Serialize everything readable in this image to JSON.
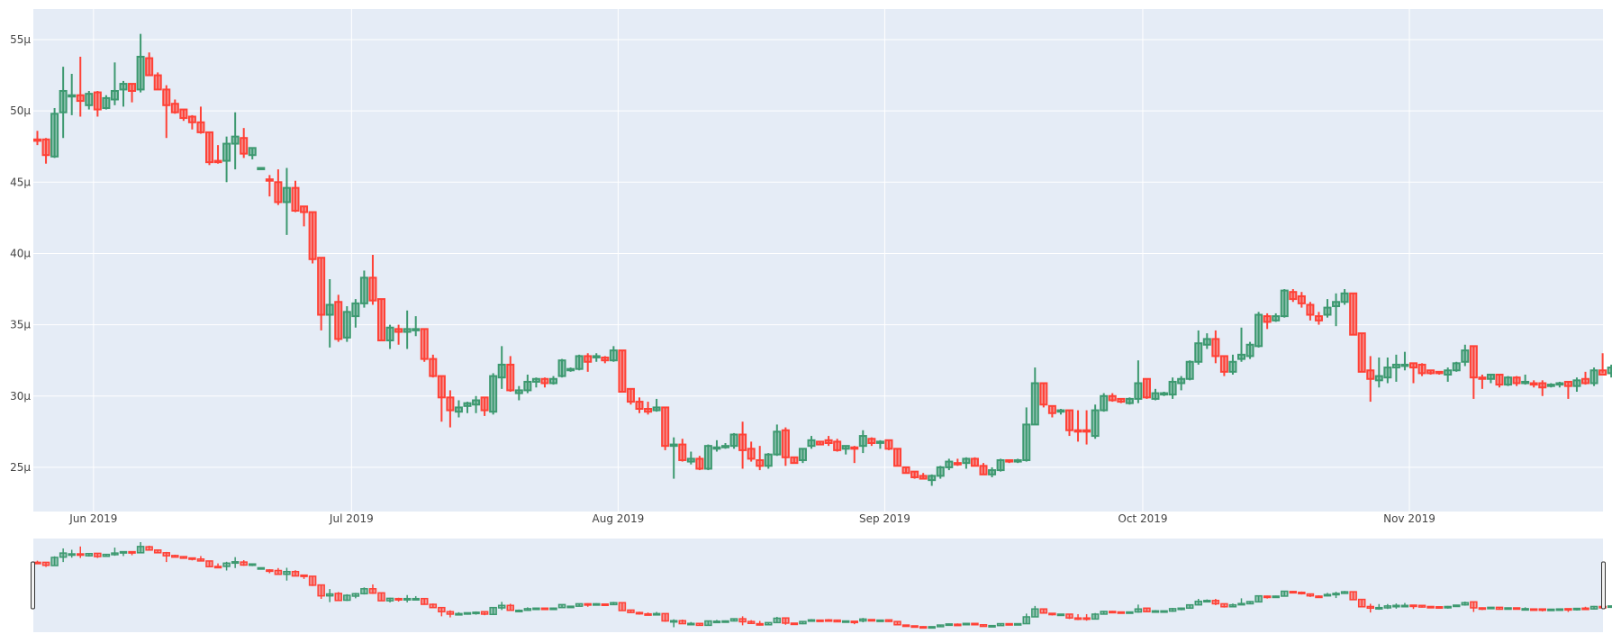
{
  "chart_data": {
    "type": "candlestick",
    "title": "",
    "xlabel": "",
    "ylabel": "",
    "x_start": "2019-05-25",
    "x_interval": "1 day",
    "ylim": [
      22.0,
      57.3
    ],
    "y_ticks": [
      {
        "value": 25,
        "label": "25µ"
      },
      {
        "value": 30,
        "label": "30µ"
      },
      {
        "value": 35,
        "label": "35µ"
      },
      {
        "value": 40,
        "label": "40µ"
      },
      {
        "value": 45,
        "label": "45µ"
      },
      {
        "value": 50,
        "label": "50µ"
      },
      {
        "value": 55,
        "label": "55µ"
      }
    ],
    "x_ticks": [
      {
        "date": "2019-06-01",
        "label": "Jun 2019"
      },
      {
        "date": "2019-07-01",
        "label": "Jul 2019"
      },
      {
        "date": "2019-08-01",
        "label": "Aug 2019"
      },
      {
        "date": "2019-09-01",
        "label": "Sep 2019"
      },
      {
        "date": "2019-10-01",
        "label": "Oct 2019"
      },
      {
        "date": "2019-11-01",
        "label": "Nov 2019"
      }
    ],
    "grid": true,
    "legend": false,
    "rangeslider": true,
    "colors": {
      "increasing": "#3D9970",
      "decreasing": "#FF4136",
      "plot_bg": "#E5ECF6",
      "grid": "#FFFFFF",
      "tick_text": "#444444"
    },
    "ohlc": [
      [
        48.0,
        48.6,
        47.6,
        47.9
      ],
      [
        48.0,
        48.1,
        46.3,
        46.9
      ],
      [
        46.8,
        50.2,
        46.7,
        49.8
      ],
      [
        49.9,
        53.1,
        48.1,
        51.4
      ],
      [
        51.1,
        52.6,
        49.7,
        51.1
      ],
      [
        51.1,
        53.8,
        49.6,
        50.7
      ],
      [
        50.4,
        51.4,
        50.1,
        51.2
      ],
      [
        51.3,
        51.4,
        49.6,
        50.1
      ],
      [
        50.2,
        51.1,
        50.1,
        50.9
      ],
      [
        50.8,
        53.4,
        50.4,
        51.4
      ],
      [
        51.5,
        52.1,
        50.3,
        51.9
      ],
      [
        51.9,
        51.9,
        50.6,
        51.4
      ],
      [
        51.5,
        55.4,
        51.3,
        53.8
      ],
      [
        53.7,
        54.1,
        52.5,
        52.5
      ],
      [
        52.5,
        52.7,
        51.5,
        51.5
      ],
      [
        51.5,
        51.8,
        48.1,
        50.4
      ],
      [
        50.5,
        50.8,
        49.8,
        49.9
      ],
      [
        50.1,
        50.1,
        49.3,
        49.5
      ],
      [
        49.6,
        49.7,
        48.7,
        49.2
      ],
      [
        49.2,
        50.3,
        48.4,
        48.5
      ],
      [
        48.5,
        48.5,
        46.2,
        46.4
      ],
      [
        46.5,
        47.6,
        46.3,
        46.4
      ],
      [
        46.5,
        48.2,
        45.0,
        47.7
      ],
      [
        47.7,
        49.9,
        45.9,
        48.2
      ],
      [
        48.1,
        48.8,
        46.7,
        47.0
      ],
      [
        46.9,
        47.4,
        46.6,
        47.4
      ],
      [
        46.0,
        46.0,
        46.0,
        46.0
      ],
      [
        45.2,
        45.5,
        44.0,
        45.1
      ],
      [
        45.0,
        45.9,
        43.4,
        43.6
      ],
      [
        43.6,
        46.0,
        41.3,
        44.6
      ],
      [
        44.6,
        45.1,
        42.9,
        43.0
      ],
      [
        43.3,
        43.3,
        41.9,
        42.9
      ],
      [
        42.9,
        42.9,
        39.3,
        39.6
      ],
      [
        39.7,
        39.7,
        34.6,
        35.7
      ],
      [
        35.7,
        38.2,
        33.4,
        36.4
      ],
      [
        36.6,
        37.1,
        33.8,
        34.0
      ],
      [
        34.1,
        36.3,
        33.8,
        35.9
      ],
      [
        35.6,
        36.8,
        34.8,
        36.5
      ],
      [
        36.5,
        38.8,
        36.2,
        38.3
      ],
      [
        38.3,
        39.9,
        36.4,
        36.7
      ],
      [
        36.8,
        36.8,
        33.9,
        33.9
      ],
      [
        33.9,
        35.0,
        33.3,
        34.8
      ],
      [
        34.7,
        35.0,
        33.6,
        34.5
      ],
      [
        34.5,
        36.0,
        33.3,
        34.7
      ],
      [
        34.7,
        35.6,
        34.2,
        34.7
      ],
      [
        34.7,
        34.7,
        32.4,
        32.6
      ],
      [
        32.6,
        32.9,
        31.3,
        31.4
      ],
      [
        31.4,
        31.4,
        28.2,
        29.9
      ],
      [
        29.9,
        30.4,
        27.8,
        29.0
      ],
      [
        28.9,
        29.7,
        28.5,
        29.2
      ],
      [
        29.3,
        29.6,
        28.8,
        29.5
      ],
      [
        29.4,
        30.0,
        28.8,
        29.7
      ],
      [
        29.9,
        29.9,
        28.6,
        29.0
      ],
      [
        28.9,
        31.6,
        28.7,
        31.4
      ],
      [
        31.3,
        33.5,
        30.5,
        32.2
      ],
      [
        32.2,
        32.8,
        30.3,
        30.4
      ],
      [
        30.2,
        30.7,
        29.7,
        30.4
      ],
      [
        30.4,
        31.5,
        30.2,
        31.0
      ],
      [
        31.0,
        31.3,
        30.6,
        31.2
      ],
      [
        31.2,
        31.3,
        30.6,
        30.9
      ],
      [
        30.9,
        31.4,
        30.8,
        31.2
      ],
      [
        31.4,
        32.6,
        31.3,
        32.5
      ],
      [
        31.8,
        32.0,
        31.7,
        31.9
      ],
      [
        31.9,
        32.9,
        31.8,
        32.8
      ],
      [
        32.8,
        33.0,
        31.7,
        32.4
      ],
      [
        32.8,
        33.0,
        32.4,
        32.8
      ],
      [
        32.7,
        32.8,
        32.3,
        32.5
      ],
      [
        32.5,
        33.5,
        32.4,
        33.2
      ],
      [
        33.2,
        33.2,
        30.3,
        30.3
      ],
      [
        30.5,
        30.5,
        29.4,
        29.6
      ],
      [
        29.6,
        29.9,
        28.8,
        29.1
      ],
      [
        29.1,
        29.6,
        28.7,
        28.9
      ],
      [
        29.0,
        29.8,
        28.9,
        29.2
      ],
      [
        29.2,
        29.2,
        26.2,
        26.5
      ],
      [
        26.5,
        27.1,
        24.2,
        26.6
      ],
      [
        26.6,
        27.0,
        25.4,
        25.5
      ],
      [
        25.4,
        26.1,
        25.2,
        25.6
      ],
      [
        25.6,
        25.8,
        24.8,
        24.9
      ],
      [
        24.9,
        26.6,
        24.8,
        26.5
      ],
      [
        26.3,
        26.9,
        26.1,
        26.4
      ],
      [
        26.4,
        26.7,
        26.3,
        26.5
      ],
      [
        26.5,
        27.4,
        26.3,
        27.3
      ],
      [
        27.3,
        28.2,
        24.9,
        26.2
      ],
      [
        26.3,
        26.8,
        25.4,
        25.6
      ],
      [
        25.5,
        26.5,
        24.8,
        25.1
      ],
      [
        25.1,
        26.0,
        24.9,
        25.9
      ],
      [
        25.9,
        28.0,
        25.8,
        27.5
      ],
      [
        27.6,
        27.8,
        25.1,
        25.7
      ],
      [
        25.7,
        25.7,
        25.3,
        25.3
      ],
      [
        25.5,
        26.3,
        25.3,
        26.3
      ],
      [
        26.5,
        27.2,
        26.3,
        26.9
      ],
      [
        26.8,
        26.8,
        26.6,
        26.6
      ],
      [
        26.9,
        27.2,
        26.5,
        26.7
      ],
      [
        26.8,
        27.0,
        26.1,
        26.2
      ],
      [
        26.3,
        26.5,
        25.9,
        26.5
      ],
      [
        26.4,
        26.5,
        25.3,
        26.3
      ],
      [
        26.5,
        27.6,
        26.0,
        27.2
      ],
      [
        27.0,
        27.1,
        26.5,
        26.7
      ],
      [
        26.8,
        26.9,
        26.3,
        26.8
      ],
      [
        26.9,
        26.9,
        26.2,
        26.3
      ],
      [
        26.3,
        26.3,
        25.1,
        25.1
      ],
      [
        25.0,
        25.0,
        24.6,
        24.6
      ],
      [
        24.7,
        24.7,
        24.2,
        24.3
      ],
      [
        24.4,
        24.6,
        24.2,
        24.2
      ],
      [
        24.1,
        24.5,
        23.7,
        24.4
      ],
      [
        24.4,
        25.1,
        24.2,
        25.0
      ],
      [
        25.0,
        25.6,
        24.8,
        25.4
      ],
      [
        25.3,
        25.6,
        25.1,
        25.2
      ],
      [
        25.3,
        25.7,
        24.9,
        25.6
      ],
      [
        25.6,
        25.7,
        25.1,
        25.1
      ],
      [
        25.1,
        25.3,
        24.5,
        24.5
      ],
      [
        24.5,
        25.0,
        24.3,
        24.8
      ],
      [
        24.8,
        25.6,
        24.7,
        25.5
      ],
      [
        25.5,
        25.5,
        25.3,
        25.4
      ],
      [
        25.4,
        25.6,
        25.3,
        25.5
      ],
      [
        25.5,
        29.2,
        25.4,
        28.0
      ],
      [
        28.0,
        32.0,
        28.0,
        30.9
      ],
      [
        30.9,
        30.9,
        29.2,
        29.4
      ],
      [
        29.3,
        29.3,
        28.5,
        28.8
      ],
      [
        28.9,
        29.1,
        28.7,
        29.0
      ],
      [
        29.0,
        29.0,
        27.2,
        27.6
      ],
      [
        27.6,
        29.0,
        26.8,
        27.5
      ],
      [
        27.6,
        29.0,
        26.6,
        27.5
      ],
      [
        27.2,
        29.4,
        27.0,
        29.0
      ],
      [
        29.0,
        30.2,
        28.9,
        30.0
      ],
      [
        30.0,
        30.2,
        29.6,
        29.7
      ],
      [
        29.8,
        29.8,
        29.5,
        29.6
      ],
      [
        29.5,
        29.9,
        29.4,
        29.8
      ],
      [
        29.8,
        32.5,
        29.5,
        30.9
      ],
      [
        31.2,
        31.2,
        29.8,
        29.9
      ],
      [
        29.8,
        30.5,
        29.7,
        30.2
      ],
      [
        30.1,
        30.3,
        30.0,
        30.2
      ],
      [
        30.1,
        31.3,
        29.8,
        31.0
      ],
      [
        30.9,
        31.4,
        30.4,
        31.2
      ],
      [
        31.2,
        32.5,
        31.1,
        32.4
      ],
      [
        32.4,
        34.6,
        32.2,
        33.7
      ],
      [
        33.6,
        34.4,
        33.3,
        34.0
      ],
      [
        34.0,
        34.6,
        32.3,
        32.8
      ],
      [
        32.8,
        32.8,
        31.4,
        31.7
      ],
      [
        31.7,
        32.9,
        31.5,
        32.4
      ],
      [
        32.6,
        34.8,
        32.4,
        32.9
      ],
      [
        32.8,
        33.8,
        32.6,
        33.6
      ],
      [
        33.5,
        35.9,
        33.4,
        35.7
      ],
      [
        35.6,
        35.8,
        34.7,
        35.2
      ],
      [
        35.3,
        35.8,
        35.2,
        35.6
      ],
      [
        35.6,
        37.5,
        35.5,
        37.4
      ],
      [
        37.3,
        37.5,
        36.6,
        36.8
      ],
      [
        37.0,
        37.3,
        36.2,
        36.5
      ],
      [
        36.4,
        36.6,
        35.3,
        35.7
      ],
      [
        35.6,
        35.9,
        35.0,
        35.3
      ],
      [
        35.7,
        36.8,
        35.5,
        36.2
      ],
      [
        36.3,
        37.2,
        34.9,
        36.6
      ],
      [
        36.6,
        37.5,
        36.4,
        37.2
      ],
      [
        37.2,
        37.2,
        34.3,
        34.3
      ],
      [
        34.4,
        34.4,
        31.7,
        31.7
      ],
      [
        31.8,
        32.8,
        29.6,
        31.2
      ],
      [
        31.1,
        32.7,
        30.6,
        31.4
      ],
      [
        31.3,
        32.7,
        30.9,
        32.0
      ],
      [
        32.0,
        32.9,
        31.0,
        32.2
      ],
      [
        32.2,
        33.1,
        31.8,
        32.2
      ],
      [
        32.3,
        32.3,
        30.9,
        32.0
      ],
      [
        32.2,
        32.3,
        31.4,
        31.6
      ],
      [
        31.8,
        31.8,
        31.5,
        31.6
      ],
      [
        31.7,
        31.7,
        31.5,
        31.6
      ],
      [
        31.5,
        32.0,
        31.0,
        31.8
      ],
      [
        31.8,
        32.4,
        31.7,
        32.3
      ],
      [
        32.4,
        33.6,
        32.1,
        33.2
      ],
      [
        33.5,
        33.5,
        29.8,
        31.3
      ],
      [
        31.3,
        31.5,
        30.5,
        31.2
      ],
      [
        31.2,
        31.5,
        30.9,
        31.5
      ],
      [
        31.5,
        31.5,
        30.6,
        30.8
      ],
      [
        30.8,
        31.4,
        30.7,
        31.3
      ],
      [
        31.3,
        31.4,
        30.7,
        30.9
      ],
      [
        30.9,
        31.5,
        30.8,
        31.0
      ],
      [
        30.9,
        31.1,
        30.6,
        30.8
      ],
      [
        30.9,
        31.1,
        30.0,
        30.6
      ],
      [
        30.7,
        30.9,
        30.6,
        30.8
      ],
      [
        30.8,
        31.0,
        30.6,
        30.9
      ],
      [
        31.0,
        31.0,
        29.8,
        30.7
      ],
      [
        30.7,
        31.3,
        30.3,
        31.1
      ],
      [
        31.2,
        31.7,
        30.8,
        30.9
      ],
      [
        30.9,
        32.0,
        30.7,
        31.8
      ],
      [
        31.8,
        33.0,
        31.6,
        31.5
      ],
      [
        31.6,
        32.2,
        31.3,
        32.0
      ]
    ]
  },
  "rangeslider": {
    "handle_left": "range-handle-left",
    "handle_right": "range-handle-right"
  }
}
